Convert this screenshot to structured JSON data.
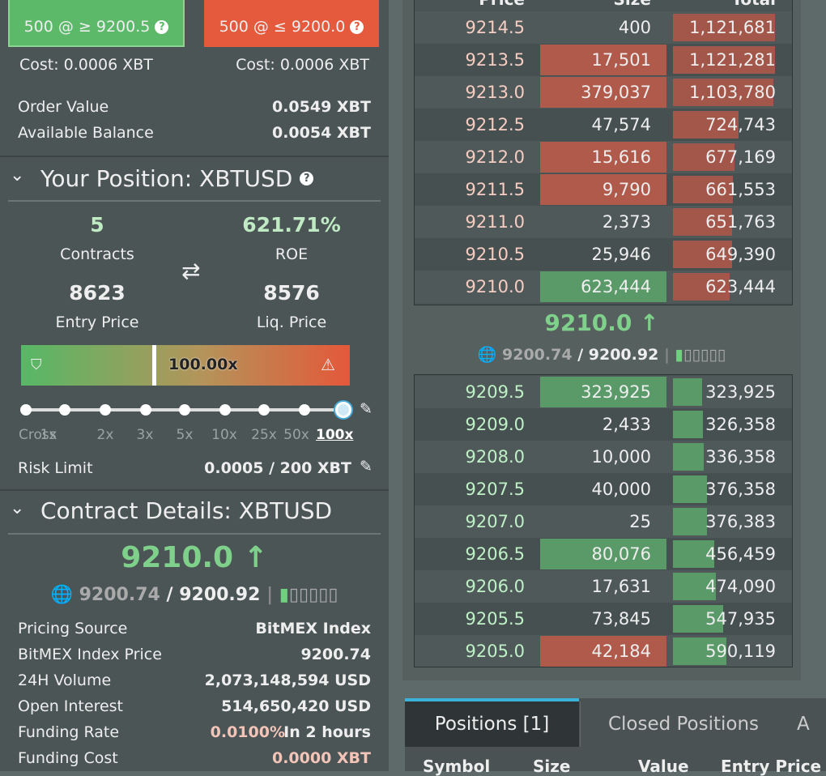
{
  "order_buttons": [
    "500 @ ≥ 9200.5",
    "500 @ ≤ 9200.0"
  ],
  "costs": [
    "Cost: 0.0006 XBT",
    "Cost: 0.0006 XBT"
  ],
  "order_summary": [
    {
      "label": "Order Value",
      "value": "0.0549 XBT"
    },
    {
      "label": "Available Balance",
      "value": "0.0054 XBT"
    }
  ],
  "position": {
    "title": "Your Position: XBTUSD",
    "contracts": "5",
    "contracts_label": "Contracts",
    "roe": "621.71%",
    "roe_label": "ROE",
    "entry_price": "8623",
    "entry_label": "Entry Price",
    "liq_price": "8576",
    "liq_label": "Liq. Price",
    "leverage": "100.00x",
    "leverage_options": [
      "Cross",
      "1x",
      "2x",
      "3x",
      "5x",
      "10x",
      "25x",
      "50x",
      "100x"
    ],
    "risk_limit_label": "Risk Limit",
    "risk_limit": "0.0005 / 200 XBT"
  },
  "contract": {
    "title": "Contract Details: XBTUSD",
    "last_price": "9210.0",
    "index": "9200.74",
    "separator": "/",
    "mark": "9200.92",
    "rows": [
      {
        "label": "Pricing Source",
        "value": "BitMEX Index"
      },
      {
        "label": "BitMEX Index Price",
        "value": "9200.74"
      },
      {
        "label": "24H Volume",
        "value": "2,073,148,594 USD"
      },
      {
        "label": "Open Interest",
        "value": "514,650,420 USD"
      },
      {
        "label": "Funding Rate",
        "value": "0.0100%",
        "extra": "In 2 hours"
      },
      {
        "label": "Funding Cost",
        "value": "0.0000 XBT"
      }
    ]
  },
  "orderbook": {
    "headers": [
      "Price",
      "Size",
      "Total"
    ],
    "asks": [
      {
        "price": "9214.5",
        "size": "400",
        "total": "1,121,681"
      },
      {
        "price": "9213.5",
        "size": "17,501",
        "total": "1,121,281",
        "flash": "red"
      },
      {
        "price": "9213.0",
        "size": "379,037",
        "total": "1,103,780",
        "flash": "red"
      },
      {
        "price": "9212.5",
        "size": "47,574",
        "total": "724,743"
      },
      {
        "price": "9212.0",
        "size": "15,616",
        "total": "677,169",
        "flash": "red"
      },
      {
        "price": "9211.5",
        "size": "9,790",
        "total": "661,553",
        "flash": "red"
      },
      {
        "price": "9211.0",
        "size": "2,373",
        "total": "651,763"
      },
      {
        "price": "9210.5",
        "size": "25,946",
        "total": "649,390"
      },
      {
        "price": "9210.0",
        "size": "623,444",
        "total": "623,444",
        "flash": "green"
      }
    ],
    "last_price": "9210.0",
    "index": "9200.74",
    "separator": "/",
    "mark": "9200.92",
    "bids": [
      {
        "price": "9209.5",
        "size": "323,925",
        "total": "323,925",
        "flash": "green"
      },
      {
        "price": "9209.0",
        "size": "2,433",
        "total": "326,358"
      },
      {
        "price": "9208.0",
        "size": "10,000",
        "total": "336,358"
      },
      {
        "price": "9207.5",
        "size": "40,000",
        "total": "376,358"
      },
      {
        "price": "9207.0",
        "size": "25",
        "total": "376,383"
      },
      {
        "price": "9206.5",
        "size": "80,076",
        "total": "456,459",
        "flash": "green"
      },
      {
        "price": "9206.0",
        "size": "17,631",
        "total": "474,090"
      },
      {
        "price": "9205.5",
        "size": "73,845",
        "total": "547,935"
      },
      {
        "price": "9205.0",
        "size": "42,184",
        "total": "590,119",
        "flash": "red"
      }
    ]
  },
  "tabs": [
    "Positions [1]",
    "Closed Positions",
    "A"
  ],
  "columns": [
    "Symbol",
    "Size",
    "Value",
    "Entry Price"
  ]
}
